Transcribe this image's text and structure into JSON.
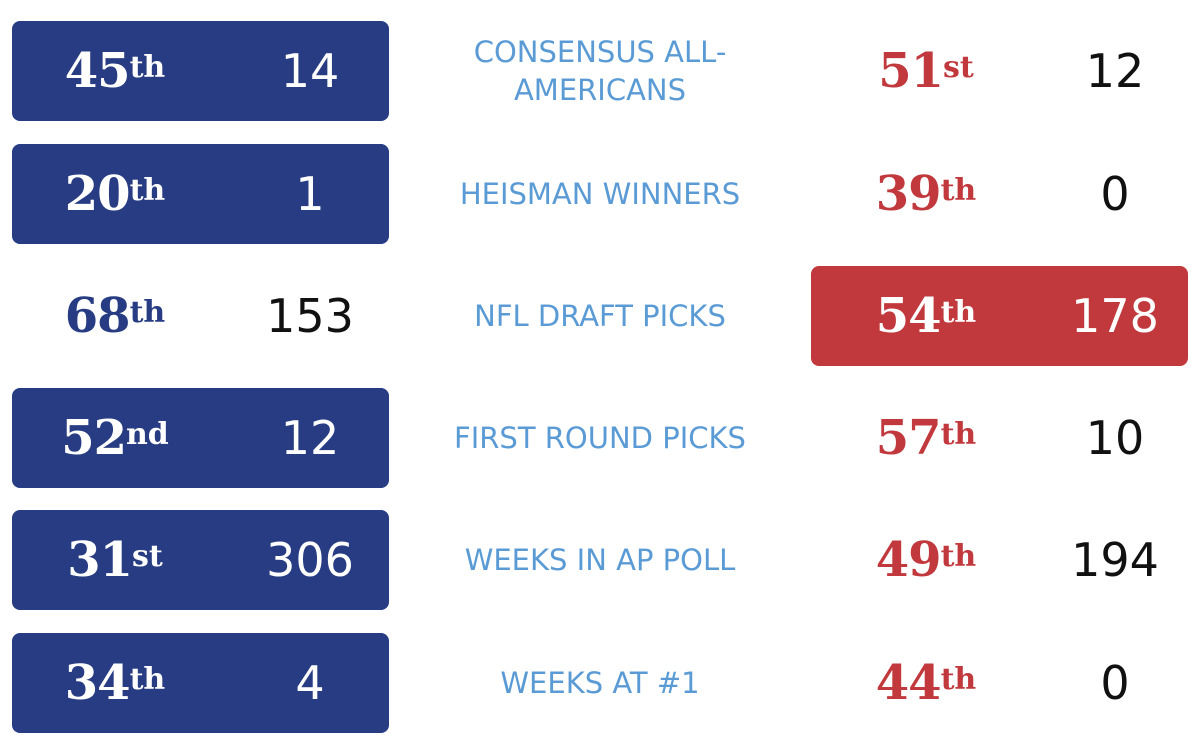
{
  "colors": {
    "blue": "#273c82",
    "red": "#c1393d",
    "label_blue": "#5b9bd5",
    "black": "#111111",
    "white": "#ffffff"
  },
  "rows": [
    {
      "label": "CONSENSUS ALL-AMERICANS",
      "left": {
        "rank": "45",
        "suffix": "th",
        "value": "14",
        "highlighted": true
      },
      "right": {
        "rank": "51",
        "suffix": "st",
        "value": "12",
        "highlighted": false
      }
    },
    {
      "label": "HEISMAN WINNERS",
      "left": {
        "rank": "20",
        "suffix": "th",
        "value": "1",
        "highlighted": true
      },
      "right": {
        "rank": "39",
        "suffix": "th",
        "value": "0",
        "highlighted": false
      }
    },
    {
      "label": "NFL DRAFT PICKS",
      "left": {
        "rank": "68",
        "suffix": "th",
        "value": "153",
        "highlighted": false
      },
      "right": {
        "rank": "54",
        "suffix": "th",
        "value": "178",
        "highlighted": true
      }
    },
    {
      "label": "FIRST ROUND PICKS",
      "left": {
        "rank": "52",
        "suffix": "nd",
        "value": "12",
        "highlighted": true
      },
      "right": {
        "rank": "57",
        "suffix": "th",
        "value": "10",
        "highlighted": false
      }
    },
    {
      "label": "WEEKS IN AP POLL",
      "left": {
        "rank": "31",
        "suffix": "st",
        "value": "306",
        "highlighted": true
      },
      "right": {
        "rank": "49",
        "suffix": "th",
        "value": "194",
        "highlighted": false
      }
    },
    {
      "label": "WEEKS AT #1",
      "left": {
        "rank": "34",
        "suffix": "th",
        "value": "4",
        "highlighted": true
      },
      "right": {
        "rank": "44",
        "suffix": "th",
        "value": "0",
        "highlighted": false
      }
    }
  ]
}
